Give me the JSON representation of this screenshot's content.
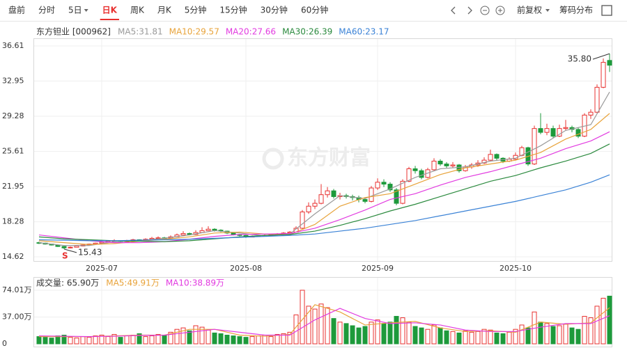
{
  "toolbar": {
    "tabs": [
      "盘前",
      "分时",
      "5日",
      "日K",
      "周K",
      "月K",
      "5分钟",
      "15分钟",
      "30分钟",
      "60分钟"
    ],
    "active": 3,
    "adjust": "前复权",
    "chips": "筹码分布"
  },
  "chart_data": [
    {
      "type": "candlestick",
      "title": "东方钽业 [000962]",
      "watermark": "东方财富",
      "candles": [
        [
          16.1,
          16.2,
          15.95,
          16.05
        ],
        [
          16.05,
          16.1,
          15.9,
          15.95
        ],
        [
          15.95,
          16.0,
          15.8,
          15.85
        ],
        [
          15.85,
          15.9,
          15.65,
          15.7
        ],
        [
          15.7,
          15.75,
          15.43,
          15.55
        ],
        [
          15.55,
          15.7,
          15.5,
          15.62
        ],
        [
          15.62,
          15.8,
          15.6,
          15.75
        ],
        [
          15.75,
          15.9,
          15.7,
          15.85
        ],
        [
          15.85,
          16.0,
          15.8,
          15.95
        ],
        [
          15.95,
          16.1,
          15.9,
          16.05
        ],
        [
          16.05,
          16.25,
          16.0,
          16.15
        ],
        [
          16.15,
          16.35,
          16.1,
          16.25
        ],
        [
          16.25,
          16.45,
          16.2,
          16.3
        ],
        [
          16.3,
          16.35,
          16.1,
          16.2
        ],
        [
          16.2,
          16.4,
          16.15,
          16.3
        ],
        [
          16.3,
          16.5,
          16.25,
          16.4
        ],
        [
          16.4,
          16.45,
          16.25,
          16.35
        ],
        [
          16.35,
          16.55,
          16.3,
          16.45
        ],
        [
          16.45,
          16.7,
          16.4,
          16.55
        ],
        [
          16.55,
          16.75,
          16.5,
          16.6
        ],
        [
          16.6,
          16.7,
          16.45,
          16.55
        ],
        [
          16.55,
          16.85,
          16.5,
          16.7
        ],
        [
          16.7,
          17.05,
          16.65,
          16.9
        ],
        [
          16.9,
          17.3,
          16.85,
          17.05
        ],
        [
          17.05,
          17.15,
          16.85,
          16.95
        ],
        [
          16.95,
          17.4,
          16.9,
          17.15
        ],
        [
          17.15,
          17.7,
          17.1,
          17.35
        ],
        [
          17.35,
          17.8,
          17.3,
          17.5
        ],
        [
          17.5,
          17.6,
          17.25,
          17.4
        ],
        [
          17.4,
          17.5,
          17.2,
          17.3
        ],
        [
          17.3,
          17.35,
          17.0,
          17.1
        ],
        [
          17.1,
          17.15,
          16.85,
          16.95
        ],
        [
          16.95,
          17.0,
          16.75,
          16.85
        ],
        [
          16.85,
          16.9,
          16.6,
          16.7
        ],
        [
          16.7,
          16.85,
          16.65,
          16.75
        ],
        [
          16.75,
          16.9,
          16.7,
          16.8
        ],
        [
          16.8,
          16.95,
          16.75,
          16.85
        ],
        [
          16.85,
          17.05,
          16.8,
          16.95
        ],
        [
          16.95,
          17.1,
          16.9,
          17.0
        ],
        [
          17.0,
          17.2,
          16.95,
          17.1
        ],
        [
          17.1,
          17.3,
          17.05,
          17.2
        ],
        [
          17.2,
          17.8,
          17.15,
          17.6
        ],
        [
          17.6,
          19.5,
          17.5,
          19.3
        ],
        [
          19.3,
          20.3,
          19.1,
          19.9
        ],
        [
          19.9,
          20.6,
          19.6,
          20.2
        ],
        [
          20.2,
          22.2,
          20.1,
          21.1
        ],
        [
          21.1,
          21.9,
          20.8,
          21.5
        ],
        [
          21.5,
          21.7,
          20.7,
          20.9
        ],
        [
          20.9,
          21.3,
          20.6,
          21.0
        ],
        [
          21.0,
          21.2,
          20.7,
          20.9
        ],
        [
          20.9,
          21.1,
          20.5,
          20.8
        ],
        [
          20.8,
          21.0,
          20.3,
          20.6
        ],
        [
          20.6,
          20.8,
          20.2,
          20.4
        ],
        [
          20.4,
          22.0,
          20.3,
          21.8
        ],
        [
          21.8,
          22.8,
          21.6,
          22.4
        ],
        [
          22.4,
          22.7,
          21.9,
          22.2
        ],
        [
          22.2,
          22.4,
          21.4,
          21.6
        ],
        [
          21.6,
          21.8,
          20.0,
          20.2
        ],
        [
          20.2,
          22.7,
          20.1,
          22.5
        ],
        [
          22.5,
          24.0,
          22.4,
          23.8
        ],
        [
          23.8,
          24.1,
          23.3,
          23.6
        ],
        [
          23.6,
          23.8,
          22.7,
          22.9
        ],
        [
          22.9,
          23.9,
          22.8,
          23.7
        ],
        [
          23.7,
          24.9,
          23.6,
          24.6
        ],
        [
          24.6,
          24.8,
          24.1,
          24.3
        ],
        [
          24.3,
          24.5,
          23.9,
          24.1
        ],
        [
          24.1,
          24.5,
          23.9,
          24.2
        ],
        [
          24.2,
          24.3,
          23.4,
          23.6
        ],
        [
          23.6,
          24.2,
          23.5,
          24.0
        ],
        [
          24.0,
          24.4,
          23.8,
          24.2
        ],
        [
          24.2,
          24.7,
          24.0,
          24.4
        ],
        [
          24.4,
          25.0,
          24.3,
          24.7
        ],
        [
          24.7,
          25.8,
          24.6,
          25.3
        ],
        [
          25.3,
          25.4,
          24.7,
          24.9
        ],
        [
          24.9,
          25.0,
          24.4,
          24.6
        ],
        [
          24.6,
          25.0,
          24.5,
          24.8
        ],
        [
          24.8,
          25.5,
          24.7,
          25.2
        ],
        [
          25.2,
          26.2,
          25.1,
          26.0
        ],
        [
          26.0,
          26.1,
          24.1,
          24.3
        ],
        [
          24.3,
          28.3,
          24.2,
          28.0
        ],
        [
          28.0,
          29.6,
          27.4,
          27.6
        ],
        [
          27.6,
          28.5,
          27.3,
          28.0
        ],
        [
          28.0,
          28.3,
          27.0,
          27.2
        ],
        [
          27.2,
          28.4,
          27.1,
          28.0
        ],
        [
          28.0,
          28.9,
          27.8,
          28.1
        ],
        [
          28.1,
          28.3,
          27.6,
          27.9
        ],
        [
          27.9,
          28.1,
          27.0,
          27.2
        ],
        [
          27.2,
          29.6,
          27.1,
          29.4
        ],
        [
          29.4,
          30.0,
          29.0,
          29.7
        ],
        [
          29.7,
          32.6,
          29.6,
          32.3
        ],
        [
          32.3,
          35.3,
          32.2,
          34.9
        ],
        [
          35.1,
          35.8,
          33.9,
          34.6
        ]
      ],
      "xticks": [
        {
          "value": 10,
          "label": "2025-07"
        },
        {
          "value": 33,
          "label": "2025-08"
        },
        {
          "value": 54,
          "label": "2025-09"
        },
        {
          "value": 76,
          "label": "2025-10"
        }
      ],
      "ylim": [
        14.62,
        36.61
      ],
      "yticks": [
        14.62,
        18.28,
        21.95,
        25.61,
        29.28,
        32.95,
        36.61
      ],
      "grid": true,
      "up_color": "#e8302f",
      "down_color": "#1d9a3b",
      "series": [
        {
          "label": "MA5:31.81",
          "color": "#9a9a9a",
          "x": [
            0,
            4,
            8,
            12,
            16,
            20,
            24,
            28,
            32,
            36,
            40,
            44,
            48,
            52,
            56,
            60,
            64,
            68,
            72,
            76,
            80,
            84,
            88,
            91
          ],
          "values": [
            16.1,
            15.8,
            15.8,
            16.2,
            16.3,
            16.55,
            16.9,
            17.35,
            17.1,
            16.8,
            17.0,
            19.1,
            21.0,
            20.7,
            21.7,
            22.9,
            23.8,
            24.0,
            24.6,
            24.9,
            26.2,
            27.8,
            28.4,
            31.81
          ]
        },
        {
          "label": "MA10:29.57",
          "color": "#e8a33a",
          "x": [
            0,
            4,
            8,
            12,
            16,
            20,
            24,
            28,
            32,
            36,
            40,
            44,
            48,
            52,
            56,
            60,
            64,
            68,
            72,
            76,
            80,
            84,
            88,
            91
          ],
          "values": [
            16.3,
            16.1,
            15.9,
            16.0,
            16.25,
            16.45,
            16.7,
            17.1,
            17.2,
            17.0,
            16.95,
            18.0,
            19.9,
            20.8,
            21.2,
            22.2,
            23.2,
            23.9,
            24.3,
            24.7,
            25.5,
            26.9,
            27.9,
            29.57
          ]
        },
        {
          "label": "MA20:27.66",
          "color": "#e23be0",
          "x": [
            0,
            4,
            8,
            12,
            16,
            20,
            24,
            28,
            32,
            36,
            40,
            44,
            48,
            52,
            56,
            60,
            64,
            68,
            72,
            76,
            80,
            84,
            88,
            91
          ],
          "values": [
            16.9,
            16.6,
            16.3,
            16.1,
            16.1,
            16.2,
            16.45,
            16.75,
            16.95,
            17.0,
            17.05,
            17.6,
            18.5,
            19.5,
            20.6,
            21.2,
            22.1,
            22.9,
            23.5,
            24.2,
            24.9,
            25.9,
            26.7,
            27.66
          ]
        },
        {
          "label": "MA30:26.39",
          "color": "#2b8a3e",
          "x": [
            0,
            4,
            8,
            12,
            16,
            20,
            24,
            28,
            32,
            36,
            40,
            44,
            48,
            52,
            56,
            60,
            64,
            68,
            72,
            76,
            80,
            84,
            88,
            91
          ],
          "values": [
            16.7,
            16.5,
            16.4,
            16.3,
            16.25,
            16.2,
            16.3,
            16.5,
            16.7,
            16.85,
            16.95,
            17.3,
            17.9,
            18.6,
            19.4,
            20.1,
            20.9,
            21.7,
            22.5,
            23.1,
            23.9,
            24.6,
            25.4,
            26.39
          ]
        },
        {
          "label": "MA60:23.17",
          "color": "#3a82d6",
          "x": [
            0,
            4,
            8,
            12,
            16,
            20,
            24,
            28,
            32,
            36,
            40,
            44,
            48,
            52,
            56,
            60,
            64,
            68,
            72,
            76,
            80,
            84,
            88,
            91
          ],
          "values": [
            16.4,
            16.35,
            16.3,
            16.3,
            16.35,
            16.4,
            16.45,
            16.55,
            16.65,
            16.75,
            16.85,
            17.0,
            17.3,
            17.6,
            18.0,
            18.4,
            18.9,
            19.4,
            19.9,
            20.4,
            21.0,
            21.6,
            22.4,
            23.17
          ]
        }
      ],
      "annotations": [
        {
          "label": "35.80",
          "x": 91,
          "y": 35.8
        },
        {
          "label": "15.43",
          "x": 4,
          "y": 15.43
        },
        {
          "label": "S",
          "x": 4
        }
      ]
    },
    {
      "type": "bar",
      "title": "成交量: 65.90万",
      "values": [
        10,
        9,
        8,
        11,
        12,
        9,
        8,
        10,
        9,
        11,
        12,
        10,
        13,
        9,
        11,
        12,
        14,
        10,
        11,
        13,
        12,
        16,
        20,
        22,
        18,
        25,
        23,
        19,
        15,
        14,
        12,
        11,
        10,
        9,
        10,
        11,
        12,
        10,
        13,
        14,
        16,
        40,
        74.01,
        52,
        48,
        55,
        50,
        35,
        30,
        28,
        25,
        22,
        24,
        30,
        33,
        28,
        30,
        38,
        36,
        30,
        24,
        22,
        20,
        26,
        22,
        18,
        17,
        15,
        18,
        16,
        17,
        20,
        19,
        15,
        14,
        16,
        20,
        26,
        22,
        44,
        30,
        28,
        24,
        25,
        27,
        22,
        20,
        38,
        36,
        52,
        63,
        65.9
      ],
      "ylim": [
        0,
        74.01
      ],
      "yticks": [
        0,
        {
          "value": 37,
          "label": "37.00万"
        },
        {
          "value": 74.01,
          "label": "74.01万"
        }
      ],
      "series": [
        {
          "label": "MA5:49.91万",
          "color": "#e8a33a",
          "x": [
            0,
            4,
            8,
            12,
            16,
            20,
            24,
            28,
            32,
            36,
            40,
            44,
            48,
            52,
            56,
            60,
            64,
            68,
            72,
            76,
            80,
            84,
            88,
            91
          ],
          "values": [
            10,
            10,
            10,
            11,
            12,
            12,
            20,
            20,
            12,
            10.5,
            13,
            54,
            44,
            26,
            29,
            31,
            22,
            17,
            18,
            16,
            30,
            27,
            29,
            49.91
          ]
        },
        {
          "label": "MA10:38.89万",
          "color": "#e23be0",
          "x": [
            0,
            4,
            8,
            12,
            16,
            20,
            24,
            28,
            32,
            36,
            40,
            44,
            48,
            52,
            56,
            60,
            64,
            68,
            72,
            76,
            80,
            84,
            88,
            91
          ],
          "values": [
            11,
            10.5,
            10,
            10.5,
            11.5,
            12,
            16,
            20,
            16,
            12,
            12,
            33,
            49,
            35,
            28,
            29,
            26,
            19,
            17,
            17,
            23,
            28,
            28,
            38.89
          ]
        }
      ]
    }
  ]
}
